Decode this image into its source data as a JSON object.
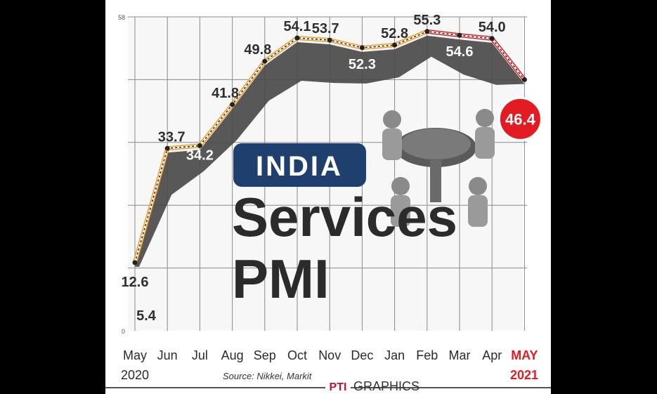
{
  "graphic": {
    "badge_text": "INDIA",
    "title_line1": "Services",
    "title_line2": "PMI",
    "source": "Source: Nikkei, Markit",
    "credit_logo": "PTI",
    "credit_text": "GRAPHICS"
  },
  "colors": {
    "line_orange": "#f39a1e",
    "line_red": "#e31b23",
    "highlight_red": "#e31b23",
    "badge_blue": "#1f3f6e",
    "ribbon_gray": "#4a4a4a"
  },
  "chart_data": {
    "type": "line",
    "categories": [
      "May",
      "Jun",
      "Jul",
      "Aug",
      "Sep",
      "Oct",
      "Nov",
      "Dec",
      "Jan",
      "Feb",
      "Mar",
      "Apr",
      "MAY"
    ],
    "year_labels": {
      "start": "2020",
      "end": "2021"
    },
    "values": [
      12.6,
      33.7,
      34.2,
      41.8,
      49.8,
      54.1,
      53.7,
      52.3,
      52.8,
      55.3,
      54.6,
      54.0,
      46.4
    ],
    "value_labels": [
      "12.6",
      "33.7",
      "34.2",
      "41.8",
      "49.8",
      "54.1",
      "53.7",
      "52.3",
      "52.8",
      "55.3",
      "54.6",
      "54.0",
      "46.4"
    ],
    "extra_annotations": [
      "5.4"
    ],
    "highlight_last": true,
    "ylim": [
      0,
      58
    ],
    "y_tick_labels": [
      "0",
      "58"
    ],
    "grid": true,
    "title": "Services PMI",
    "xlabel": "",
    "ylabel": ""
  }
}
